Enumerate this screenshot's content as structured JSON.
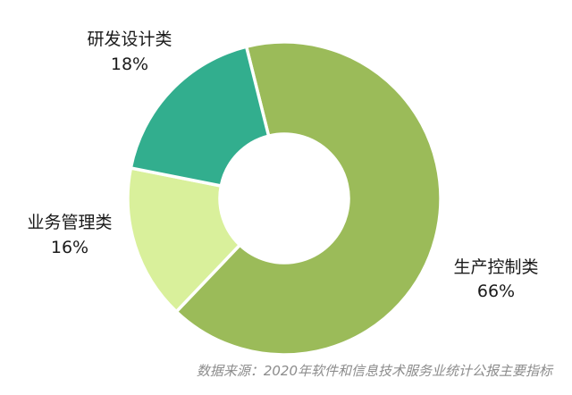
{
  "chart_data": {
    "type": "pie",
    "donut": true,
    "slices": [
      {
        "label": "生产控制类",
        "value": 66,
        "value_label": "66%",
        "color": "#9bbb59"
      },
      {
        "label": "业务管理类",
        "value": 16,
        "value_label": "16%",
        "color": "#d9f09b"
      },
      {
        "label": "研发设计类",
        "value": 18,
        "value_label": "18%",
        "color": "#32ae8e"
      }
    ],
    "legend": "none"
  },
  "source": "数据来源：2020年软件和信息技术服务业统计公报主要指标"
}
